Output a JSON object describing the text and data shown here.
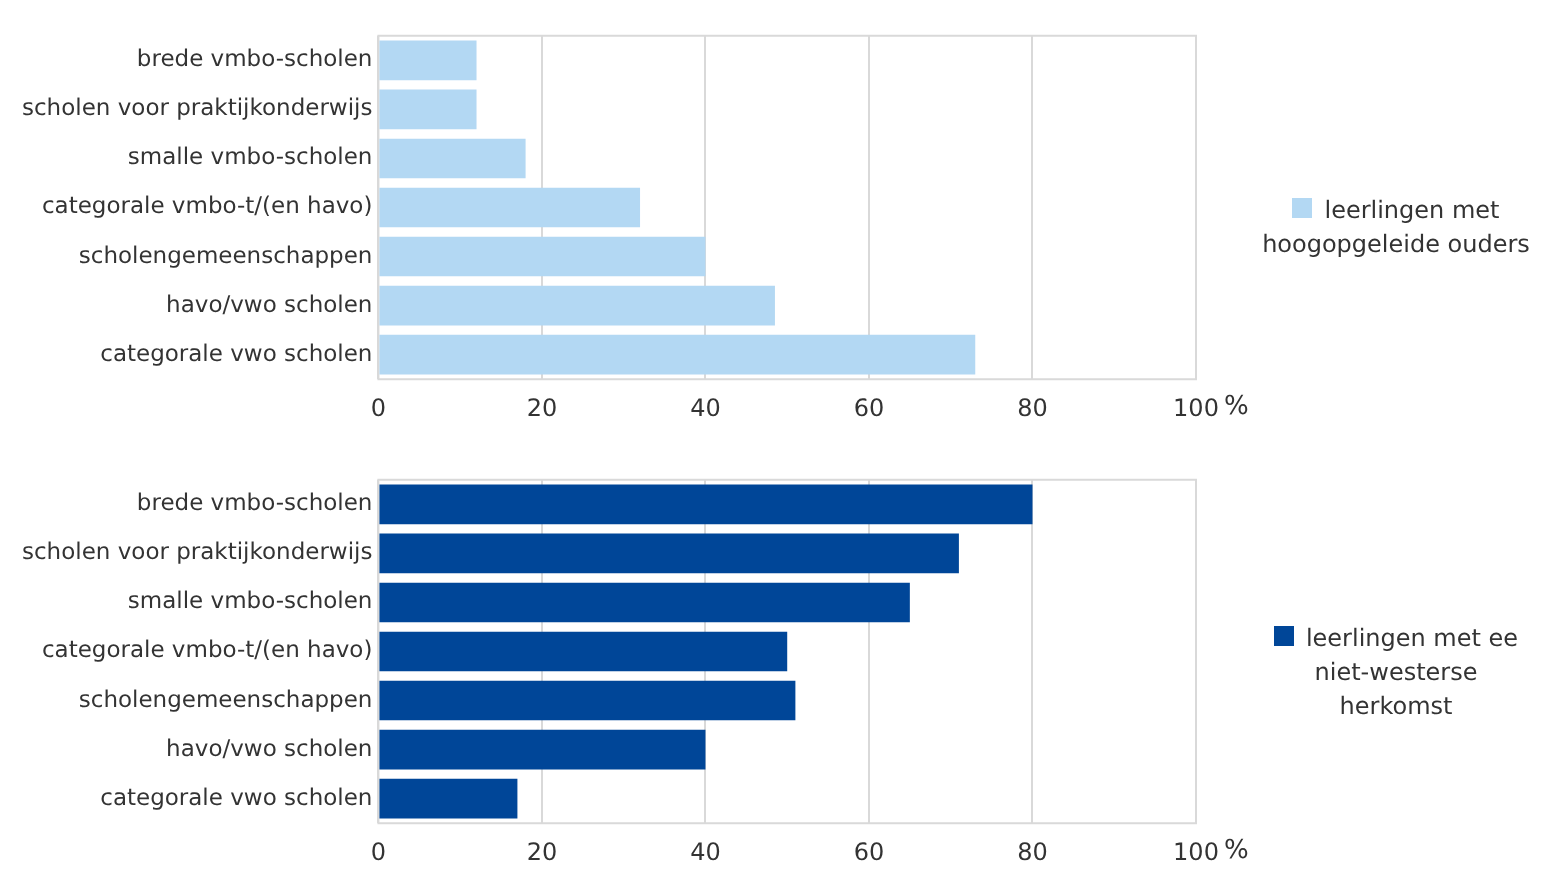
{
  "chart_data": [
    {
      "type": "bar",
      "orientation": "horizontal",
      "categories": [
        "brede vmbo-scholen",
        "scholen voor praktijkonderwijs",
        "smalle vmbo-scholen",
        "categorale vmbo-t/(en havo)",
        "scholengemeenschappen",
        "havo/vwo scholen",
        "categorale vwo scholen"
      ],
      "series": [
        {
          "name": "leerlingen met hoogopgeleide ouders",
          "color": "#b3d8f3",
          "values": [
            12,
            12,
            18,
            32,
            40,
            48.5,
            73
          ]
        }
      ],
      "xlim": [
        0,
        100
      ],
      "xticks": [
        0,
        20,
        40,
        60,
        80,
        100
      ],
      "xlabel": "%",
      "grid": "x",
      "legend": "right"
    },
    {
      "type": "bar",
      "orientation": "horizontal",
      "categories": [
        "brede vmbo-scholen",
        "scholen voor praktijkonderwijs",
        "smalle vmbo-scholen",
        "categorale vmbo-t/(en havo)",
        "scholengemeenschappen",
        "havo/vwo scholen",
        "categorale vwo scholen"
      ],
      "series": [
        {
          "name": "leerlingen met ee niet-westerse herkomst",
          "color": "#004698",
          "values": [
            80,
            71,
            65,
            50,
            51,
            40,
            17
          ]
        }
      ],
      "xlim": [
        0,
        100
      ],
      "xticks": [
        0,
        20,
        40,
        60,
        80,
        100
      ],
      "xlabel": "%",
      "grid": "x",
      "legend": "right"
    }
  ]
}
